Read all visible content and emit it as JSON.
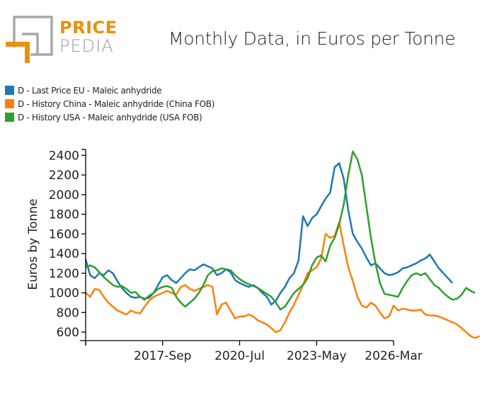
{
  "brand": {
    "name_top": "PRICE",
    "name_bottom": "PEDIA",
    "colors": {
      "orange": "#e8900f",
      "gray": "#9a9a9a"
    }
  },
  "chart_data": {
    "type": "line",
    "title": "Monthly Data, in Euros per Tonne",
    "xlabel": "",
    "ylabel": "Euros by Tonne",
    "ylim": [
      514,
      2460
    ],
    "yticks": [
      600,
      800,
      1000,
      1200,
      1400,
      1600,
      1800,
      2000,
      2200,
      2400
    ],
    "ytick_labels": [
      "600",
      "800",
      "1000",
      "1200",
      "1400",
      "1600",
      "1800",
      "2000",
      "2200",
      "2400"
    ],
    "xlim_months": [
      0,
      136
    ],
    "x_origin": "2014-Nov",
    "xticks": [
      {
        "month_index": 0,
        "label": ""
      },
      {
        "month_index": 34,
        "label": "2017-Sep"
      },
      {
        "month_index": 68,
        "label": "2020-Jul"
      },
      {
        "month_index": 102,
        "label": "2023-May"
      },
      {
        "month_index": 136,
        "label": "2026-Mar"
      }
    ],
    "grid": false,
    "legend_position": "top-left",
    "x_step_months": 2,
    "series": [
      {
        "name": "D - Last Price EU - Maleic anhydride",
        "color": "#1f77b4",
        "values": [
          1340,
          1180,
          1150,
          1200,
          1180,
          1230,
          1200,
          1120,
          1050,
          1000,
          960,
          950,
          960,
          940,
          950,
          1000,
          1080,
          1160,
          1180,
          1130,
          1100,
          1150,
          1200,
          1240,
          1230,
          1260,
          1290,
          1270,
          1250,
          1180,
          1200,
          1240,
          1210,
          1130,
          1100,
          1080,
          1060,
          1080,
          1050,
          1000,
          960,
          880,
          920,
          1000,
          1060,
          1150,
          1200,
          1330,
          1780,
          1680,
          1760,
          1800,
          1880,
          1960,
          2020,
          2280,
          2320,
          2160,
          1840,
          1600,
          1520,
          1450,
          1360,
          1280,
          1300,
          1250,
          1200,
          1180,
          1190,
          1210,
          1250,
          1260,
          1280,
          1300,
          1330,
          1350,
          1390,
          1320,
          1250,
          1200,
          1150,
          1100
        ]
      },
      {
        "name": "D - History China - Maleic anhydride (China FOB)",
        "color": "#ff7f0e",
        "values": [
          1000,
          960,
          1040,
          1030,
          960,
          900,
          860,
          820,
          800,
          780,
          820,
          800,
          790,
          860,
          920,
          960,
          980,
          1000,
          1020,
          1000,
          980,
          1060,
          1080,
          1040,
          1020,
          1040,
          1060,
          1080,
          1060,
          780,
          880,
          900,
          820,
          740,
          760,
          760,
          780,
          760,
          720,
          700,
          680,
          640,
          600,
          620,
          700,
          800,
          880,
          980,
          1080,
          1200,
          1230,
          1260,
          1350,
          1600,
          1560,
          1580,
          1720,
          1480,
          1260,
          1120,
          960,
          870,
          850,
          900,
          870,
          800,
          740,
          760,
          870,
          820,
          840,
          830,
          820,
          820,
          830,
          780,
          770,
          770,
          760,
          740,
          720,
          700,
          680,
          640,
          600,
          560,
          540,
          560
        ]
      },
      {
        "name": "D - History USA - Maleic anhydride (USA FOB)",
        "color": "#2ca02c",
        "values": [
          1260,
          1280,
          1260,
          1210,
          1160,
          1120,
          1080,
          1060,
          1070,
          1040,
          1000,
          1010,
          960,
          930,
          970,
          1000,
          1040,
          1060,
          1070,
          1050,
          960,
          900,
          860,
          900,
          940,
          1000,
          1080,
          1180,
          1220,
          1230,
          1250,
          1240,
          1230,
          1180,
          1140,
          1110,
          1090,
          1070,
          1050,
          1020,
          990,
          960,
          900,
          830,
          860,
          930,
          1000,
          1040,
          1080,
          1150,
          1280,
          1360,
          1380,
          1320,
          1480,
          1560,
          1700,
          1900,
          2200,
          2440,
          2360,
          2200,
          1880,
          1560,
          1300,
          1100,
          990,
          980,
          970,
          960,
          1050,
          1120,
          1180,
          1200,
          1180,
          1200,
          1140,
          1080,
          1050,
          1000,
          960,
          930,
          940,
          980,
          1050,
          1020,
          1000
        ]
      }
    ]
  }
}
